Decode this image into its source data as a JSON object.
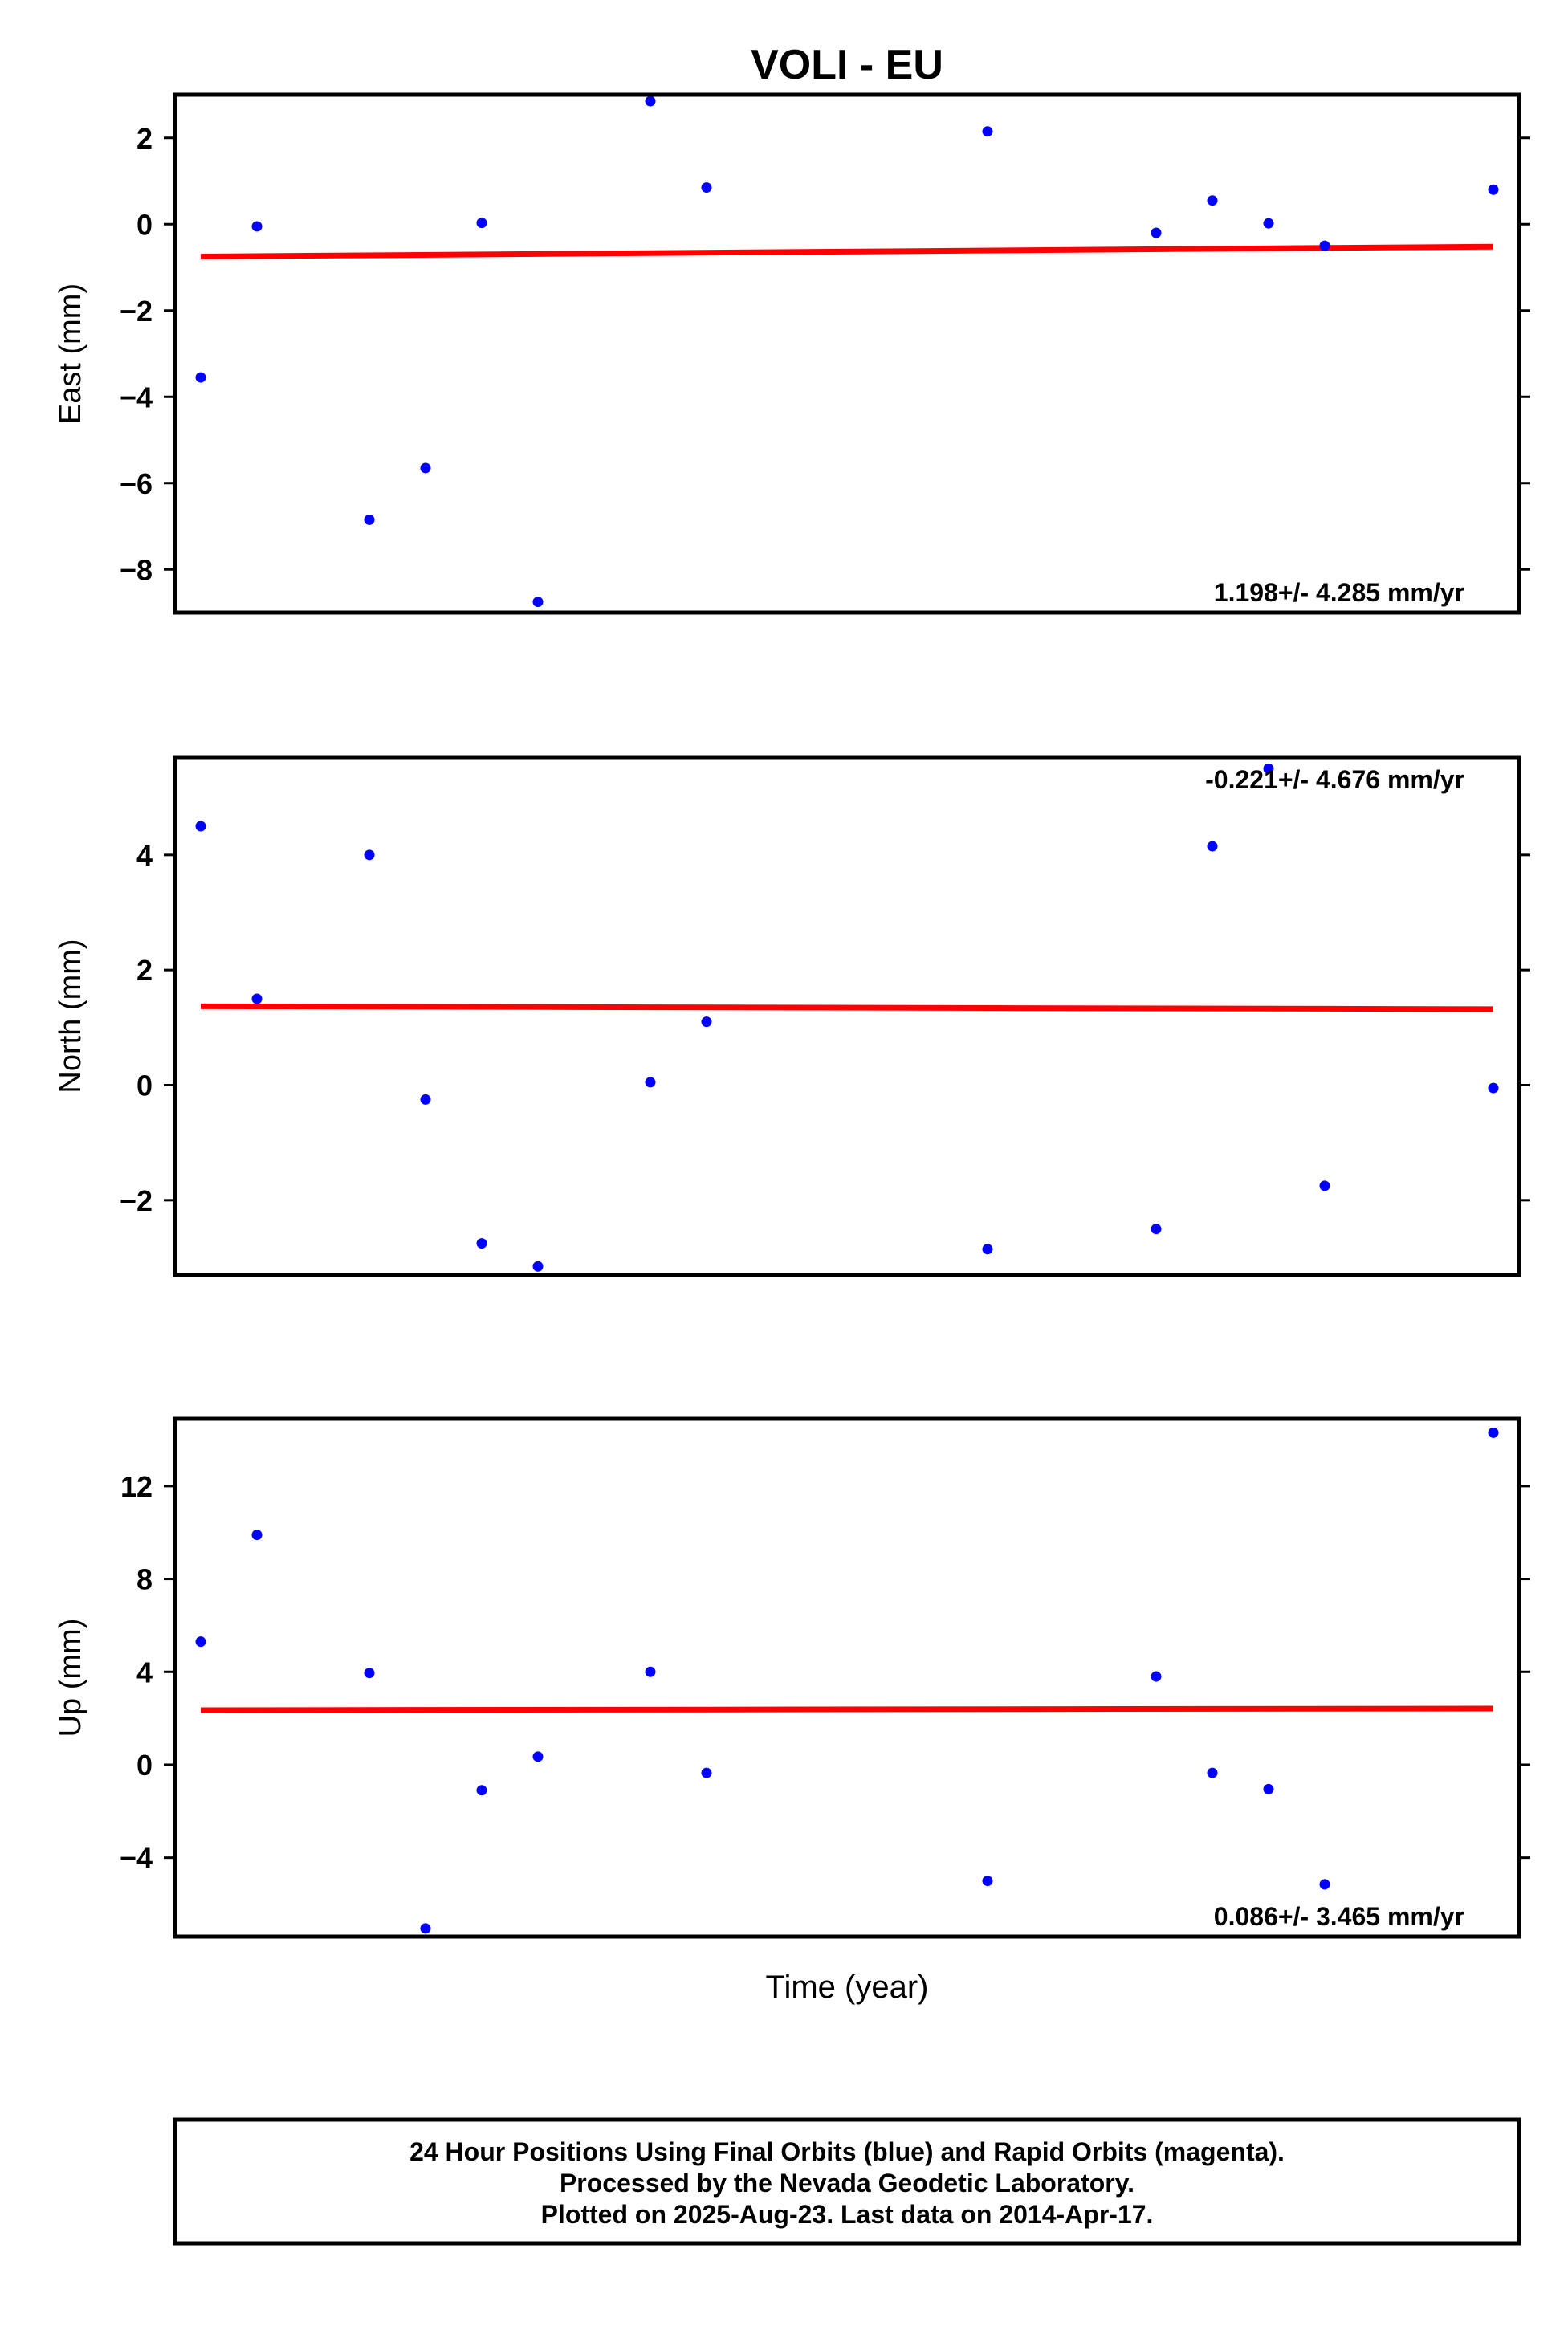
{
  "chart_data": {
    "title": "VOLI - EU",
    "xlabel": "Time (year)",
    "panels": [
      {
        "type": "scatter",
        "ylabel": "East (mm)",
        "ylim": [
          -9,
          3
        ],
        "yticks": [
          2,
          0,
          -2,
          -4,
          -6,
          -8
        ],
        "ytick_labels": [
          "2",
          "0",
          "−2",
          "−4",
          "−6",
          "−8"
        ],
        "points": [
          {
            "x": 0,
            "y": -3.55
          },
          {
            "x": 1,
            "y": -0.05
          },
          {
            "x": 3,
            "y": -6.85
          },
          {
            "x": 4,
            "y": -5.65
          },
          {
            "x": 5,
            "y": 0.03
          },
          {
            "x": 6,
            "y": -8.75
          },
          {
            "x": 8,
            "y": 2.85
          },
          {
            "x": 9,
            "y": 0.85
          },
          {
            "x": 14,
            "y": 2.15
          },
          {
            "x": 17,
            "y": -0.2
          },
          {
            "x": 18,
            "y": 0.55
          },
          {
            "x": 19,
            "y": 0.02
          },
          {
            "x": 20,
            "y": -0.5
          },
          {
            "x": 23,
            "y": 0.8
          }
        ],
        "fit": {
          "x": [
            0,
            23
          ],
          "y": [
            -0.75,
            -0.52
          ]
        },
        "rate": "1.198+/- 4.285 mm/yr",
        "rate_pos": "bottom-right"
      },
      {
        "type": "scatter",
        "ylabel": "North (mm)",
        "ylim": [
          -3.3,
          5.7
        ],
        "yticks": [
          4,
          2,
          0,
          -2
        ],
        "ytick_labels": [
          "4",
          "2",
          "0",
          "−2"
        ],
        "points": [
          {
            "x": 0,
            "y": 4.5
          },
          {
            "x": 1,
            "y": 1.5
          },
          {
            "x": 3,
            "y": 4.0
          },
          {
            "x": 4,
            "y": -0.25
          },
          {
            "x": 5,
            "y": -2.75
          },
          {
            "x": 6,
            "y": -3.15
          },
          {
            "x": 8,
            "y": 0.05
          },
          {
            "x": 9,
            "y": 1.1
          },
          {
            "x": 14,
            "y": -2.85
          },
          {
            "x": 17,
            "y": -2.5
          },
          {
            "x": 18,
            "y": 4.15
          },
          {
            "x": 19,
            "y": 5.5
          },
          {
            "x": 20,
            "y": -1.75
          },
          {
            "x": 23,
            "y": -0.05
          }
        ],
        "fit": {
          "x": [
            0,
            23
          ],
          "y": [
            1.37,
            1.32
          ]
        },
        "rate": "-0.221+/- 4.676 mm/yr",
        "rate_pos": "top-right"
      },
      {
        "type": "scatter",
        "ylabel": "Up (mm)",
        "ylim": [
          -7.4,
          14.9
        ],
        "yticks": [
          12,
          8,
          4,
          0,
          -4
        ],
        "ytick_labels": [
          "12",
          "8",
          "4",
          "0",
          "−4"
        ],
        "points": [
          {
            "x": 0,
            "y": 5.3
          },
          {
            "x": 1,
            "y": 9.9
          },
          {
            "x": 3,
            "y": 3.95
          },
          {
            "x": 4,
            "y": -7.05
          },
          {
            "x": 5,
            "y": -1.1
          },
          {
            "x": 6,
            "y": 0.35
          },
          {
            "x": 8,
            "y": 4.0
          },
          {
            "x": 9,
            "y": -0.35
          },
          {
            "x": 14,
            "y": -5.0
          },
          {
            "x": 17,
            "y": 3.8
          },
          {
            "x": 18,
            "y": -0.35
          },
          {
            "x": 19,
            "y": -1.05
          },
          {
            "x": 20,
            "y": -5.15
          },
          {
            "x": 23,
            "y": 14.3
          }
        ],
        "fit": {
          "x": [
            0,
            23
          ],
          "y": [
            2.35,
            2.42
          ]
        },
        "rate": "0.086+/- 3.465 mm/yr",
        "rate_pos": "bottom-right"
      }
    ],
    "colors": {
      "points": "#0000ff",
      "fit": "#ff0000",
      "frame": "#000000"
    },
    "grid": false
  },
  "footer": {
    "line1": "24 Hour Positions Using Final Orbits (blue) and Rapid Orbits (magenta).",
    "line2": "Processed by the Nevada Geodetic Laboratory.",
    "line3": "Plotted on 2025-Aug-23. Last data on 2014-Apr-17."
  }
}
